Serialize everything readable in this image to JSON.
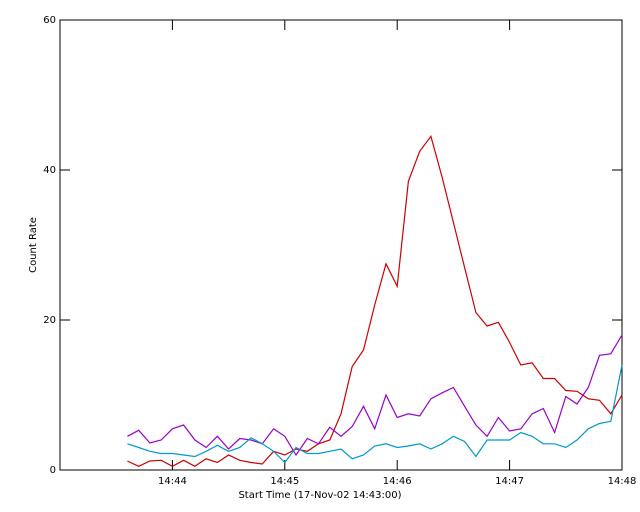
{
  "chart_data": {
    "type": "line",
    "xlabel": "Start Time (17-Nov-02 14:43:00)",
    "ylabel": "Count Rate",
    "x": [
      36,
      42,
      48,
      54,
      60,
      66,
      72,
      78,
      84,
      90,
      96,
      102,
      108,
      114,
      120,
      126,
      132,
      138,
      144,
      150,
      156,
      162,
      168,
      174,
      180,
      186,
      192,
      198,
      204,
      210,
      216,
      222,
      228,
      234,
      240,
      246,
      252,
      258,
      264,
      270,
      276,
      282,
      288,
      294,
      300
    ],
    "series": [
      {
        "color": "#cc0000",
        "values": [
          1.2,
          0.5,
          1.2,
          1.3,
          0.5,
          1.3,
          0.5,
          1.5,
          1.0,
          2.0,
          1.3,
          1.0,
          0.8,
          2.5,
          2.0,
          2.8,
          2.5,
          3.5,
          4.0,
          7.5,
          13.8,
          16,
          22,
          27.5,
          24.5,
          38.5,
          42.5,
          44.5,
          39,
          33,
          27,
          21,
          19.2,
          19.7,
          17,
          14,
          14.3,
          12.2,
          12.2,
          10.6,
          10.5,
          9.5,
          9.3,
          7.5,
          10
        ]
      },
      {
        "color": "#9900cc",
        "values": [
          4.5,
          5.3,
          3.6,
          4.0,
          5.5,
          6,
          4,
          3,
          4.5,
          2.8,
          4.2,
          4,
          3.5,
          5.5,
          4.5,
          2,
          4.2,
          3.5,
          5.7,
          4.5,
          5.8,
          8.5,
          5.5,
          10,
          7,
          7.5,
          7.2,
          9.5,
          10.3,
          11,
          8.5,
          6,
          4.5,
          7,
          5.2,
          5.5,
          7.5,
          8.2,
          5,
          9.8,
          8.8,
          11,
          15.3,
          15.5,
          18
        ]
      },
      {
        "color": "#0099cc",
        "values": [
          3.5,
          3,
          2.5,
          2.2,
          2.2,
          2,
          1.8,
          2.5,
          3.3,
          2.5,
          3,
          4.3,
          3.5,
          2.5,
          1,
          3,
          2.2,
          2.2,
          2.5,
          2.8,
          1.5,
          2,
          3.2,
          3.5,
          3,
          3.2,
          3.5,
          2.8,
          3.5,
          4.5,
          3.8,
          1.8,
          4,
          4,
          4,
          5,
          4.5,
          3.5,
          3.5,
          3,
          4,
          5.5,
          6.2,
          6.5,
          14
        ]
      }
    ],
    "xlim": [
      0,
      300
    ],
    "xticks": [
      {
        "value": 60,
        "label": "14:44"
      },
      {
        "value": 120,
        "label": "14:45"
      },
      {
        "value": 180,
        "label": "14:46"
      },
      {
        "value": 240,
        "label": "14:47"
      },
      {
        "value": 300,
        "label": "14:48"
      }
    ],
    "ylim": [
      0,
      60
    ],
    "yticks": [
      0,
      20,
      40,
      60
    ],
    "grid": false
  }
}
